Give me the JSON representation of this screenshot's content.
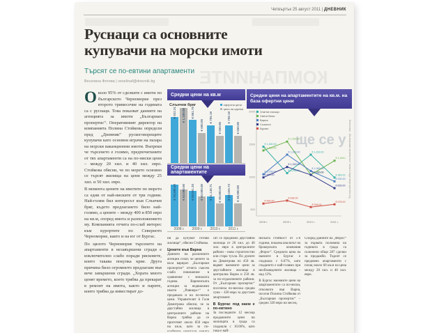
{
  "masthead": {
    "date": "Четвъртък 25 август 2011",
    "separator": " | ",
    "brand": "ДНЕВНИК"
  },
  "article": {
    "headline_line1": "Руснаци са основните",
    "headline_line2": "купувачи на морски имоти",
    "subtitle": "Търсят се по-евтини апартаменти",
    "byline": "Веселина Фотева | veselinaf@dnevnik.bg",
    "dropcap": "О",
    "col1_p1": "коло 95% от сделките с имоти по българското Черноморие през второто тримесечие на годината са с руснаци. Това показват данните на агенцията за имоти „Българиан пропертис“. Оперативният директор на компанията Полина Стойкова определи пред „Дневник“ рускоговорещите купувачи като основни играчи на пазара на морски ваканционни имоти. Въпреки че търсенето е голямо, предпочитаните от тях апартаменти са на по-ниски цени – между 20 хил. и 40 хил. евро. Стойкова обясни, че по морето основно се търсят жилища на цени между 25 хил. и 50 хил. евро.",
    "col1_p2": "В момента цените на имотите по морето са едни от най-ниските от три години. Най-голям бил интересът към Слънчев бряг, където предлагането било най-голямо, а цените – между 400 и 850 евро на кв.м, според имота и разположението му. Компанията отчита по-слаб интерес към курортите по Северното Черноморие, както и на юг от Бургас.",
    "col1_p3": "По цялото Черноморие търсенето на апартаменти в незавършени сгради е изключително слабо поради рисковете, които такава покупка крие. Друга причина било огромното предлагане във вече завършени сгради. „Хората много ценят времето, което трябва да прекарат в ремонт на имота, както и парите, които трябва да инвестират до-",
    "colA_p1": "ни да купуват готови жилища“, обясни Стойкова.",
    "varna_heading": "Цените във Варна",
    "colA_p2": "Данните на различните агенции сочат, че цените за кв.м варират. „Българиан пропертис“ отчита съвсем слабо повишение в сравнение с миналата година. Варненската агенция за недвижими имоти „Ривиера+“ е продавала и на по-ниски цени. Управителят ѝ Галя Димитрова обясни, че за двустайни жилища в централните райони на Варна трябва да се приготвят около 850 евро на кв.м, като за по-крайните квартали цената пада до 570 евро. „Тър-",
    "colB_p1": "сят се предимно двустайни жилища от 20 хил. до 40 хил. евро в централните райони – ново строителство или стара тухла. По думите на Димитрова по 450 лв. вървят наемните цени за двустайните жилища в централна Варна и 250 лв. за по-отдалечените райони. От „Българиан пропертис“ посочиха по-висока средна сума – 430 евро за двустаен апартамент.",
    "burgas_heading": "В Бургас под наем е по-евтино",
    "colB_p2": "За последните 12 месеца продажните цени на жилищата в града са спаднали с 10.06%, като това е най-",
    "colC_p1": "ниската стойност от 5-6 години, показва анализът на брокерската компания „Форос“. Средната цена на наемите в Бургас е спаднала с 6.67%, като спадането е най-голямо при необзаведените жилища – над 12%.",
    "colC_p2": "В Бургас наемните цени на апартаментите са по-ниски, отколкото във Варна, посочи Полина Стойкова от „Българиан пропертис“ – средно 320 евро на месец.",
    "colD_p1": "Според данните на „Форос“ за първата половина на годината в града са сключени общо 287 сделки за продажби. Търсят се предимно апартаменти с площ около 60 кв.м на цена между 20 хил. и 40 хил. евро."
  },
  "ghost": {
    "text1": "КОМПАНИИТЕ",
    "text2": "ще се у"
  },
  "colors": {
    "banner": "#47419b",
    "banner_notch": "#37327e",
    "bar_blue": "#3fa8d8",
    "bar_gray": "#b6b5b1",
    "teal": "#26857b"
  },
  "chart_data": [
    {
      "type": "bar",
      "title": "Средни цени на кв.м",
      "region_label": "Слънчев бряг",
      "categories": [
        "2008 г.",
        "2009 г.",
        "2010 г.",
        "2011 г."
      ],
      "series": [
        {
          "name": "офертни цени",
          "color": "#3fa8d8",
          "values": [
            922.31,
            861.75,
            755.18,
            758.18
          ]
        },
        {
          "name": "цени на сделки",
          "color": "#b6b5b1",
          "values": [
            1100.0,
            600.0,
            550.0,
            550.0
          ]
        }
      ],
      "ylim": [
        0,
        1200
      ],
      "legend_position": "top-right",
      "grid": false
    },
    {
      "type": "bar",
      "title": "Средни цени на апартаментите",
      "categories": [
        "2008 г.",
        "2009 г.",
        "2010 г.",
        "2011 г."
      ],
      "series": [
        {
          "name": "офертни цени",
          "color": "#3fa8d8",
          "values": [
            70595.49,
            59591.2,
            51148.71,
            52559.73
          ]
        },
        {
          "name": "цени на сделки",
          "color": "#b6b5b1",
          "values": [
            62000.0,
            50000.0,
            38500.0,
            38900.0
          ]
        }
      ],
      "ylim": [
        0,
        80000
      ],
      "grid": false
    },
    {
      "type": "line",
      "title": "Средни цени на апартаментите на кв.м. на база офертни цени",
      "source": "Източник: „Българиан пропертис“ www.bulgarianproperties.bg",
      "categories": [
        "2008 г.",
        "2009 г.",
        "2010 г.",
        "2011 г."
      ],
      "yticks": [
        500,
        1000,
        1500,
        2000
      ],
      "ylim": [
        400,
        2000
      ],
      "legend_position": "top-left",
      "grid": false,
      "series": [
        {
          "name": "Златни пясъци",
          "color": "#35b0a8",
          "values": [
            1460,
            1056,
            1339,
            989
          ]
        },
        {
          "name": "Свети Влас",
          "color": "#6ab54e",
          "values": [
            1403,
            1539,
            1030,
            1246
          ]
        },
        {
          "name": "Варна",
          "color": "#4a7ec2",
          "values": [
            1038,
            1339,
            1089,
            930
          ]
        },
        {
          "name": "Созопол",
          "color": "#2e3a8c",
          "values": [
            990,
            1150,
            1030,
            826
          ]
        },
        {
          "name": "Бургас",
          "color": "#cc4f43",
          "values": [
            590,
            636,
            536,
            578
          ]
        }
      ]
    }
  ]
}
